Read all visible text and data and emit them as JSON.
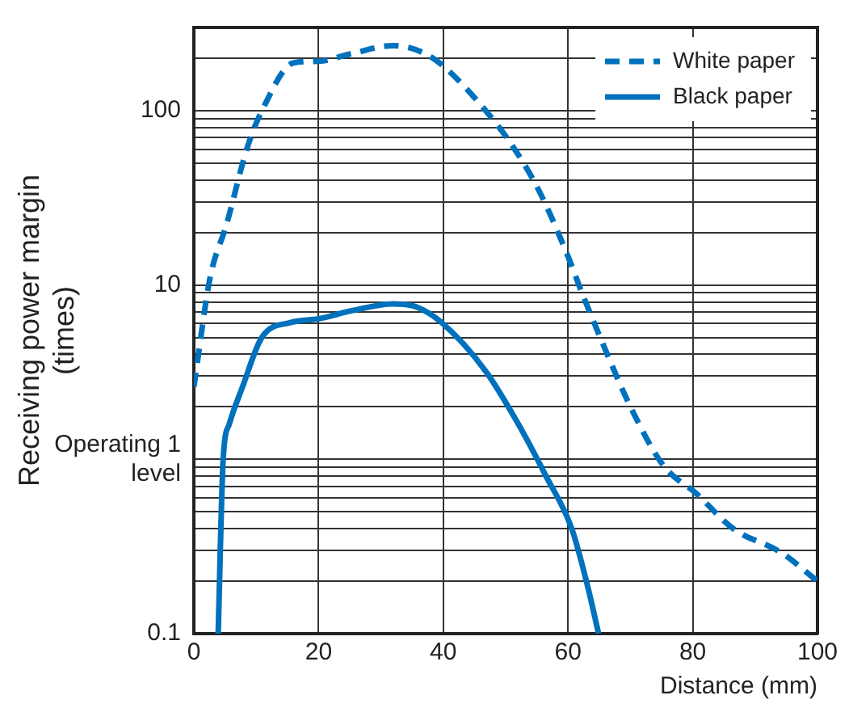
{
  "chart_data": {
    "type": "line",
    "xlabel": "Distance (mm)",
    "ylabel": "Receiving power margin (times)",
    "log": "y",
    "grid": true,
    "legend": "top right",
    "marker": "none",
    "xlim": [
      0,
      100
    ],
    "xticks": [
      0,
      20,
      40,
      60,
      80,
      100
    ],
    "ylim": [
      0.1,
      300
    ],
    "yticks": [
      0.1,
      {
        "value": 0.2,
        "label": null
      },
      {
        "value": 0.3,
        "label": null
      },
      {
        "value": 0.4,
        "label": null
      },
      {
        "value": 0.5,
        "label": null
      },
      {
        "value": 0.6,
        "label": null
      },
      {
        "value": 0.7,
        "label": null
      },
      {
        "value": 0.8,
        "label": null
      },
      {
        "value": 0.9,
        "label": null
      },
      {
        "value": 1,
        "label": "Operating 1\nlevel"
      },
      {
        "value": 2,
        "label": null
      },
      {
        "value": 3,
        "label": null
      },
      {
        "value": 4,
        "label": null
      },
      {
        "value": 5,
        "label": null
      },
      {
        "value": 6,
        "label": null
      },
      {
        "value": 7,
        "label": null
      },
      {
        "value": 8,
        "label": null
      },
      {
        "value": 9,
        "label": null
      },
      10,
      {
        "value": 20,
        "label": null
      },
      {
        "value": 30,
        "label": null
      },
      {
        "value": 40,
        "label": null
      },
      {
        "value": 50,
        "label": null
      },
      {
        "value": 60,
        "label": null
      },
      {
        "value": 70,
        "label": null
      },
      {
        "value": 80,
        "label": null
      },
      {
        "value": 90,
        "label": null
      },
      100,
      {
        "value": 200,
        "label": null
      }
    ],
    "series": [
      {
        "name": "White paper",
        "color": "#0071bc",
        "line_style": "dashed",
        "x": [
          0,
          2.6,
          5.2,
          8.6,
          11.2,
          16,
          20,
          25.2,
          32,
          36.4,
          39.7,
          46.8,
          51.2,
          55.3,
          59.7,
          62.3,
          65.7,
          70.1,
          75.3,
          80.5,
          86.5,
          94.3,
          100
        ],
        "values": [
          2.6,
          11,
          22,
          62,
          105,
          188,
          192,
          212,
          236,
          218,
          184,
          100,
          62,
          35,
          15.5,
          8.9,
          4.5,
          1.97,
          0.92,
          0.64,
          0.4,
          0.29,
          0.2
        ]
      },
      {
        "name": "Black paper",
        "color": "#0071bc",
        "line_style": "solid",
        "x": [
          3.9,
          4.7,
          5.7,
          7.8,
          10.9,
          15.6,
          20,
          25.2,
          32,
          35.6,
          39.7,
          46.8,
          52,
          56.4,
          60.6,
          63.1,
          64.9
        ],
        "values": [
          0.1,
          1,
          1.6,
          2.6,
          5,
          6.1,
          6.4,
          7.1,
          7.8,
          7.5,
          6.1,
          3.2,
          1.6,
          0.81,
          0.4,
          0.19,
          0.1
        ]
      }
    ]
  }
}
